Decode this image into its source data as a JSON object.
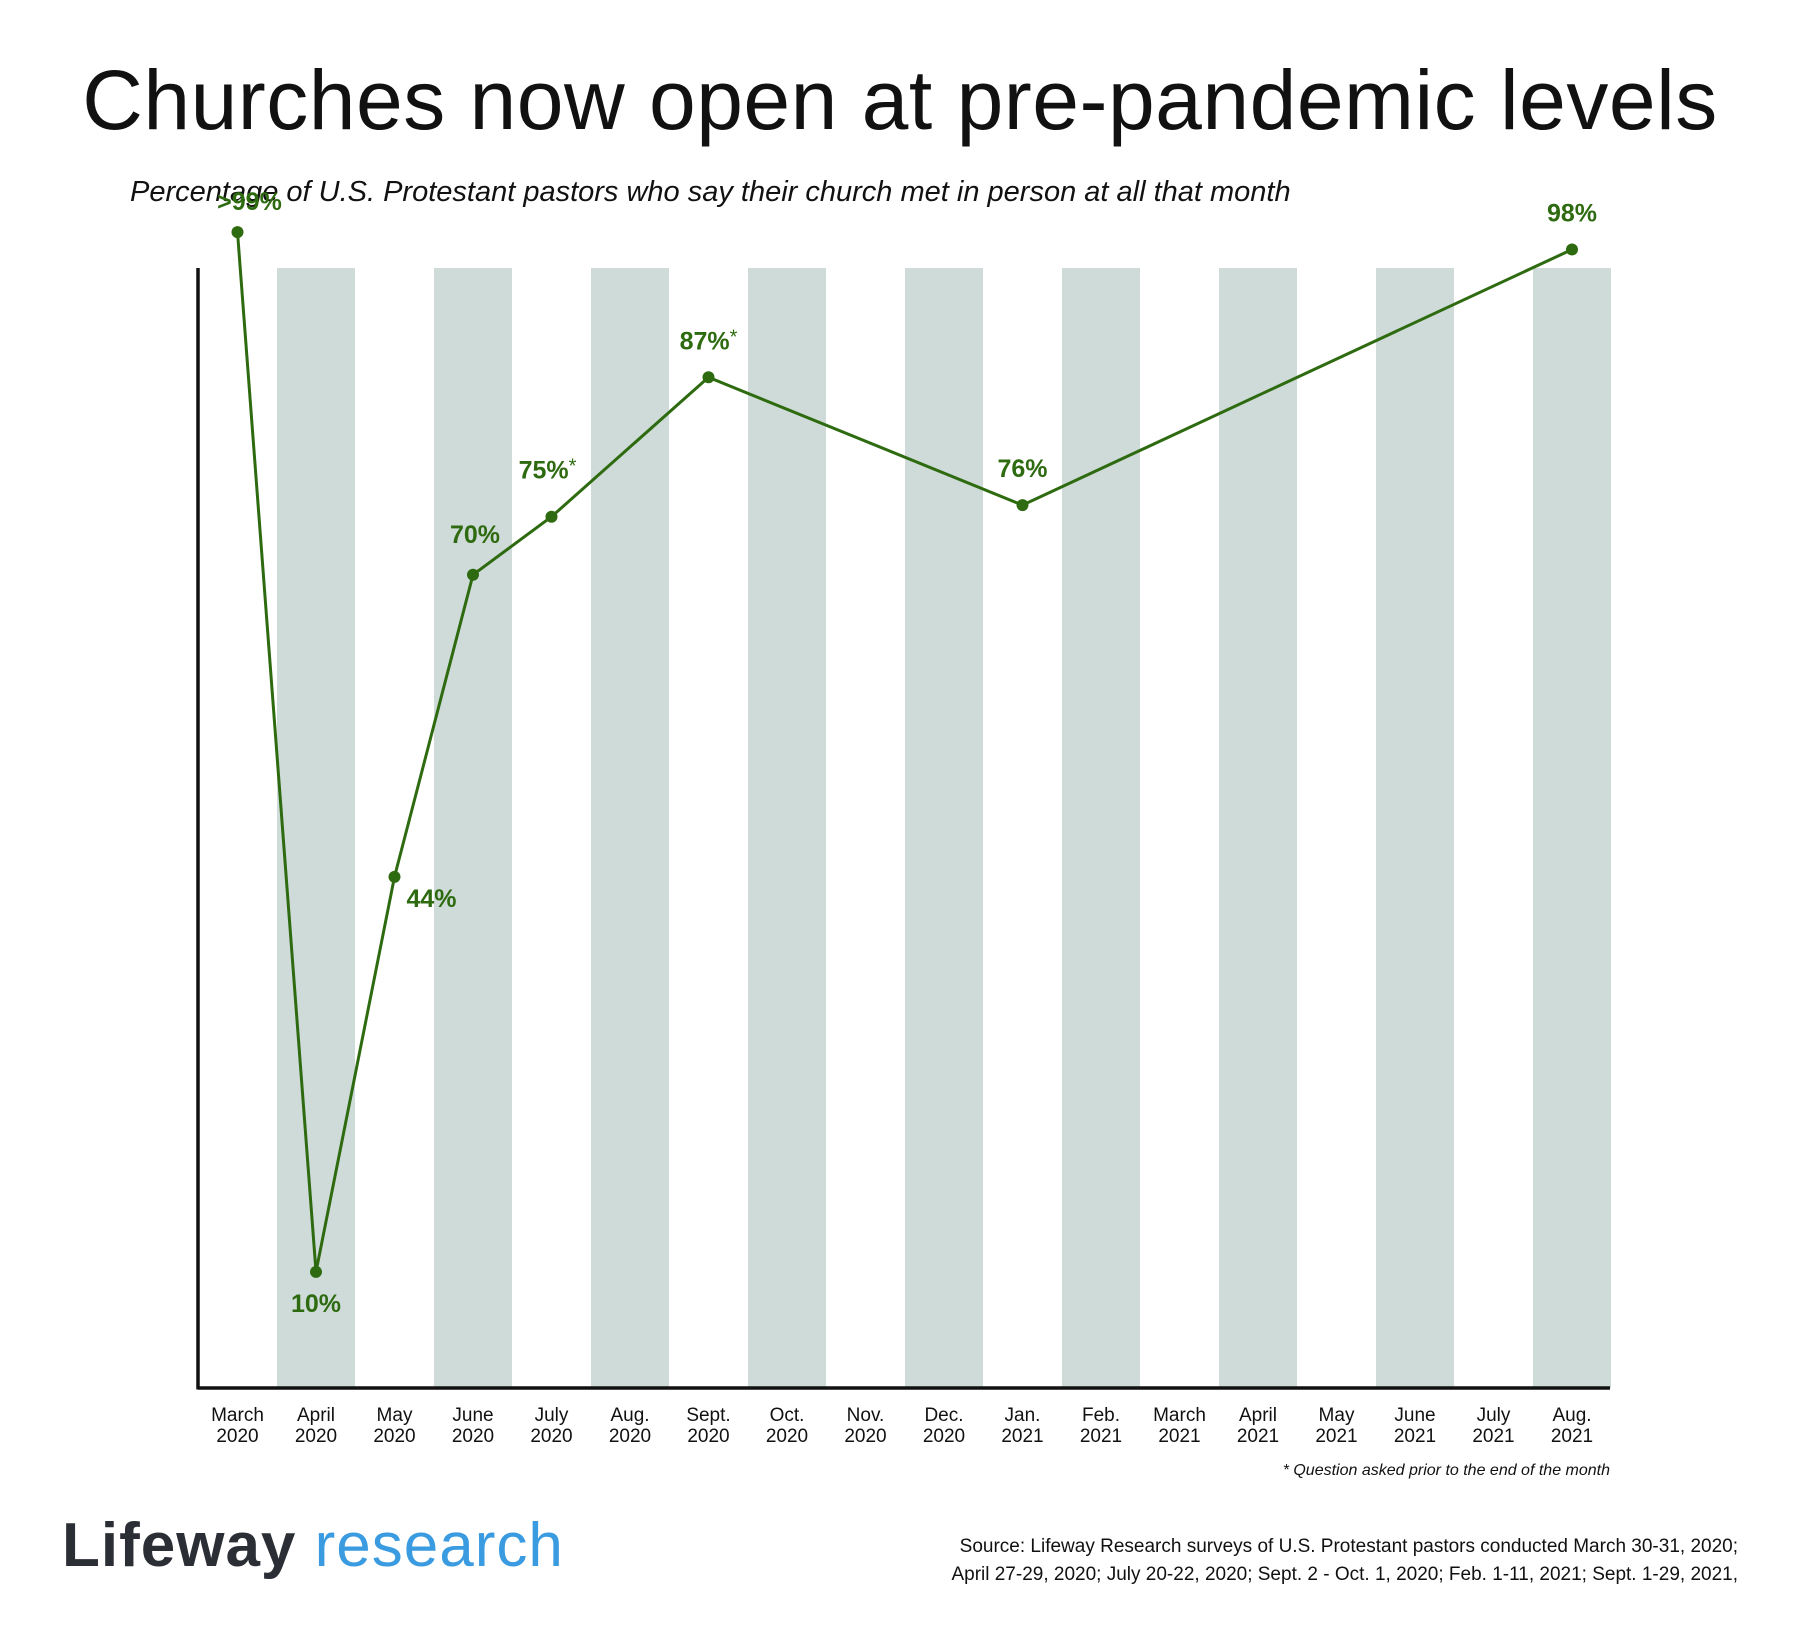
{
  "header": {
    "title": "Churches now open at pre-pandemic levels",
    "subtitle": "Percentage of U.S. Protestant pastors who say their church met in person at all that month"
  },
  "footer": {
    "footnote": "* Question asked prior to the end of the month",
    "logo_brand": "Lifeway",
    "logo_research": "research",
    "source_line1": "Source: Lifeway Research surveys of U.S. Protestant pastors conducted March 30-31, 2020;",
    "source_line2": "April 27-29, 2020; July 20-22, 2020; Sept. 2 - Oct. 1, 2020; Feb. 1-11, 2021; Sept. 1-29, 2021,"
  },
  "colors": {
    "line": "#2e6b10",
    "band": "#cfdbd9",
    "axis": "#111111",
    "logo_research": "#3a9be0"
  },
  "chart_data": {
    "type": "line",
    "title": "Churches now open at pre-pandemic levels",
    "subtitle": "Percentage of U.S. Protestant pastors who say their church met in person at all that month",
    "categories": [
      [
        "March",
        "2020"
      ],
      [
        "April",
        "2020"
      ],
      [
        "May",
        "2020"
      ],
      [
        "June",
        "2020"
      ],
      [
        "July",
        "2020"
      ],
      [
        "Aug.",
        "2020"
      ],
      [
        "Sept.",
        "2020"
      ],
      [
        "Oct.",
        "2020"
      ],
      [
        "Nov.",
        "2020"
      ],
      [
        "Dec.",
        "2020"
      ],
      [
        "Jan.",
        "2021"
      ],
      [
        "Feb.",
        "2021"
      ],
      [
        "March",
        "2021"
      ],
      [
        "April",
        "2021"
      ],
      [
        "May",
        "2021"
      ],
      [
        "June",
        "2021"
      ],
      [
        "July",
        "2021"
      ],
      [
        "Aug.",
        "2021"
      ]
    ],
    "shaded_bands": "alternating columns starting at April 2020",
    "ylim": [
      0,
      102
    ],
    "grid": false,
    "series": [
      {
        "points": [
          {
            "category_index": 0,
            "value": 99.5,
            "label": ">99%",
            "asterisk": false
          },
          {
            "category_index": 1,
            "value": 10,
            "label": "10%",
            "asterisk": false
          },
          {
            "category_index": 2,
            "value": 44,
            "label": "44%",
            "asterisk": false
          },
          {
            "category_index": 3,
            "value": 70,
            "label": "70%",
            "asterisk": false
          },
          {
            "category_index": 4,
            "value": 75,
            "label": "75%",
            "asterisk": true
          },
          {
            "category_index": 6,
            "value": 87,
            "label": "87%",
            "asterisk": true
          },
          {
            "category_index": 10,
            "value": 76,
            "label": "76%",
            "asterisk": false
          },
          {
            "category_index": 17,
            "value": 98,
            "label": "98%",
            "asterisk": false
          }
        ]
      }
    ]
  }
}
